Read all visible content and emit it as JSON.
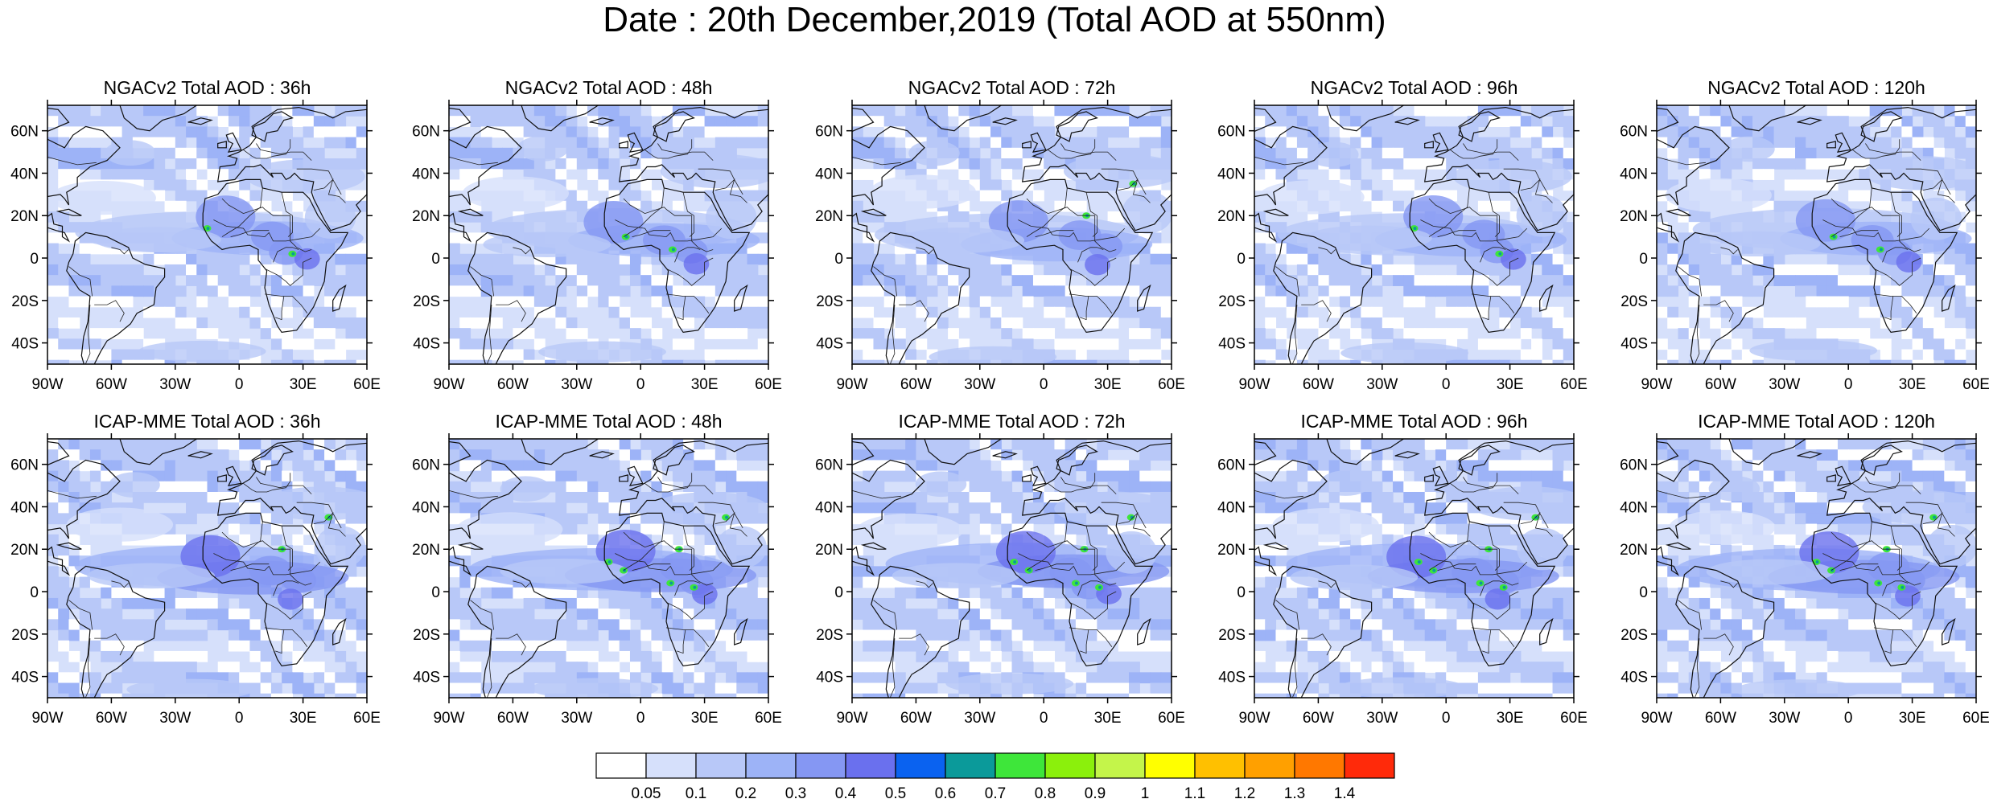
{
  "figure": {
    "title": "Date : 20th December,2019 (Total AOD at 550nm)"
  },
  "map_axes": {
    "lon_range": [
      -90,
      60
    ],
    "lat_range": [
      -50,
      72
    ],
    "lon_ticks": [
      {
        "value": -90,
        "label": "90W"
      },
      {
        "value": -60,
        "label": "60W"
      },
      {
        "value": -30,
        "label": "30W"
      },
      {
        "value": 0,
        "label": "0"
      },
      {
        "value": 30,
        "label": "30E"
      },
      {
        "value": 60,
        "label": "60E"
      }
    ],
    "lat_ticks": [
      {
        "value": 60,
        "label": "60N"
      },
      {
        "value": 40,
        "label": "40N"
      },
      {
        "value": 20,
        "label": "20N"
      },
      {
        "value": 0,
        "label": "0"
      },
      {
        "value": -20,
        "label": "20S"
      },
      {
        "value": -40,
        "label": "40S"
      }
    ]
  },
  "panels": [
    {
      "title": "NGACv2 Total AOD : 36h"
    },
    {
      "title": "NGACv2 Total AOD : 48h"
    },
    {
      "title": "NGACv2 Total AOD : 72h"
    },
    {
      "title": "NGACv2 Total AOD : 96h"
    },
    {
      "title": "NGACv2 Total AOD : 120h"
    },
    {
      "title": "ICAP-MME Total AOD : 36h"
    },
    {
      "title": "ICAP-MME Total AOD : 48h"
    },
    {
      "title": "ICAP-MME Total AOD : 72h"
    },
    {
      "title": "ICAP-MME Total AOD : 96h"
    },
    {
      "title": "ICAP-MME Total AOD : 120h"
    }
  ],
  "colorbar": {
    "labels": [
      "0.05",
      "0.1",
      "0.2",
      "0.3",
      "0.4",
      "0.5",
      "0.6",
      "0.7",
      "0.8",
      "0.9",
      "1",
      "1.1",
      "1.2",
      "1.3",
      "1.4"
    ],
    "colors": [
      "#ffffff",
      "#d6e0fb",
      "#b8c8f8",
      "#9db3f7",
      "#8597f3",
      "#6a70ee",
      "#0a62f0",
      "#0b9a9a",
      "#3ee63a",
      "#8bf00c",
      "#c4f54a",
      "#ffff00",
      "#ffc000",
      "#ffa000",
      "#ff7800",
      "#ff2a0a"
    ]
  }
}
